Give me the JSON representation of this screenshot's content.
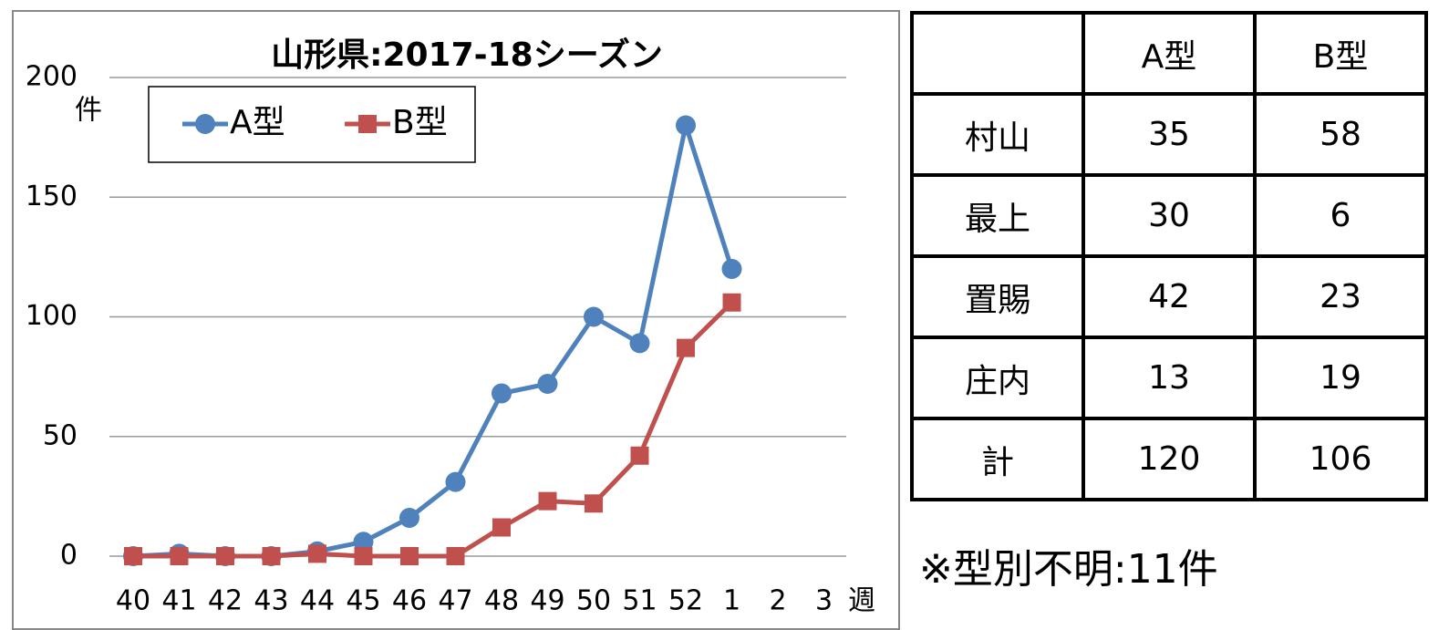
{
  "chart_data": {
    "type": "line",
    "title": "山形県:2017-18シーズン",
    "y_label": "件",
    "x_label": "週",
    "categories": [
      "40",
      "41",
      "42",
      "43",
      "44",
      "45",
      "46",
      "47",
      "48",
      "49",
      "50",
      "51",
      "52",
      "1",
      "2",
      "3"
    ],
    "series": [
      {
        "name": "A型",
        "color": "#4f81bd",
        "marker": "circle",
        "values": [
          0,
          1,
          0,
          0,
          2,
          6,
          16,
          31,
          68,
          72,
          100,
          89,
          180,
          120,
          null,
          null
        ]
      },
      {
        "name": "B型",
        "color": "#c0504d",
        "marker": "square",
        "values": [
          0,
          0,
          0,
          0,
          1,
          0,
          0,
          0,
          12,
          23,
          22,
          42,
          87,
          106,
          null,
          null
        ]
      }
    ],
    "ylim": [
      0,
      200
    ],
    "yticks": [
      0,
      50,
      100,
      150,
      200
    ],
    "grid": true,
    "legend": "top-left"
  },
  "table": {
    "columns": [
      "A型",
      "B型"
    ],
    "rows": [
      {
        "label": "村山",
        "values": [
          35,
          58
        ]
      },
      {
        "label": "最上",
        "values": [
          30,
          6
        ]
      },
      {
        "label": "置賜",
        "values": [
          42,
          23
        ]
      },
      {
        "label": "庄内",
        "values": [
          13,
          19
        ]
      },
      {
        "label": "計",
        "values": [
          120,
          106
        ]
      }
    ]
  },
  "note": "※型別不明:11件"
}
